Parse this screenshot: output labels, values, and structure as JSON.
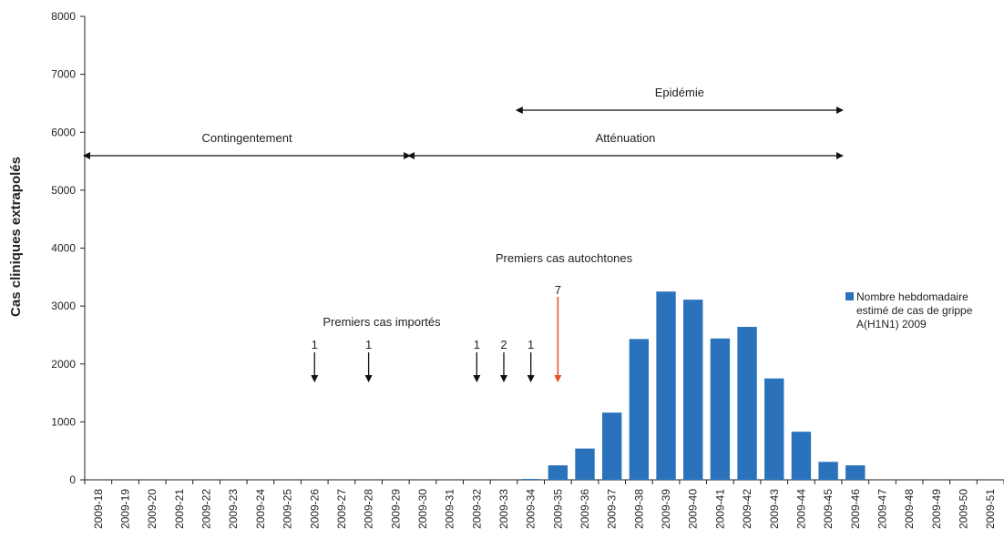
{
  "chart_data": {
    "type": "bar",
    "ylabel": "Cas cliniques extrapolés",
    "xlabel": "",
    "title": "",
    "ylim": [
      0,
      8000
    ],
    "yticks": [
      0,
      1000,
      2000,
      3000,
      4000,
      5000,
      6000,
      7000,
      8000
    ],
    "categories": [
      "2009-18",
      "2009-19",
      "2009-20",
      "2009-21",
      "2009-22",
      "2009-23",
      "2009-24",
      "2009-25",
      "2009-26",
      "2009-27",
      "2009-28",
      "2009-29",
      "2009-30",
      "2009-31",
      "2009-32",
      "2009-33",
      "2009-34",
      "2009-35",
      "2009-36",
      "2009-37",
      "2009-38",
      "2009-39",
      "2009-40",
      "2009-41",
      "2009-42",
      "2009-43",
      "2009-44",
      "2009-45",
      "2009-46",
      "2009-47",
      "2009-48",
      "2009-49",
      "2009-50",
      "2009-51"
    ],
    "series": [
      {
        "name": "Nombre hebdomadaire estimé de cas de grippe A(H1N1) 2009",
        "color": "#2a72bc",
        "values": [
          0,
          0,
          0,
          0,
          0,
          0,
          0,
          0,
          0,
          0,
          0,
          0,
          0,
          0,
          0,
          0,
          15,
          250,
          540,
          1160,
          2430,
          3250,
          3110,
          2440,
          2640,
          1750,
          830,
          310,
          250,
          0,
          0,
          0,
          0,
          0
        ]
      }
    ],
    "legend": {
      "position": "right",
      "lines": [
        "Nombre hebdomadaire",
        "estimé de cas de grippe",
        "A(H1N1) 2009"
      ]
    },
    "phases": [
      {
        "label": "Contingentement",
        "from": "2009-18",
        "to": "2009-30"
      },
      {
        "label": "Atténuation",
        "from": "2009-30",
        "to": "2009-46"
      },
      {
        "label": "Epidémie",
        "from": "2009-34",
        "to": "2009-46"
      }
    ],
    "annotations": {
      "imported_label": "Premiers cas importés",
      "autochthonous_label": "Premiers cas autochtones",
      "imported_cases": [
        {
          "week": "2009-26",
          "count": "1"
        },
        {
          "week": "2009-28",
          "count": "1"
        },
        {
          "week": "2009-32",
          "count": "1"
        },
        {
          "week": "2009-33",
          "count": "2"
        },
        {
          "week": "2009-34",
          "count": "1"
        }
      ],
      "autochthonous_case": {
        "week": "2009-35",
        "count": "7",
        "color": "#e8532a"
      }
    },
    "grid": false
  }
}
